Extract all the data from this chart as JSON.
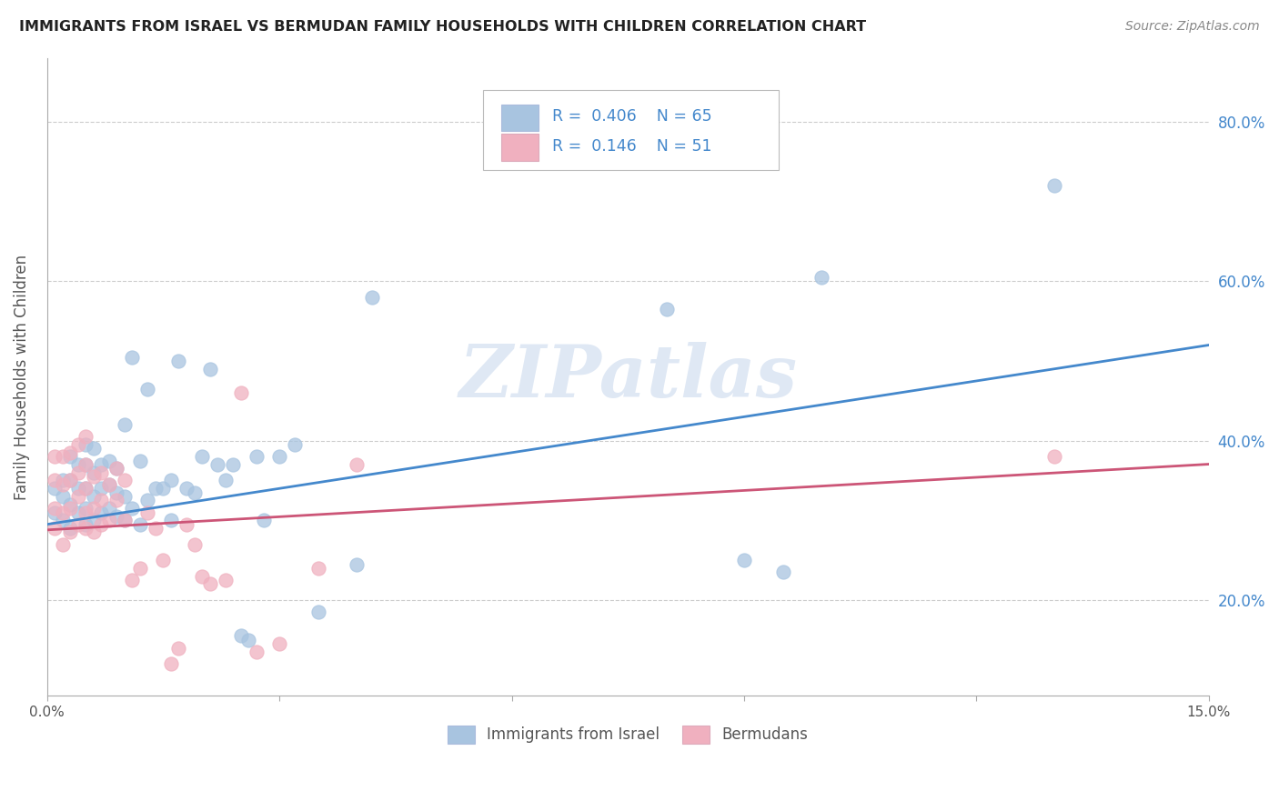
{
  "title": "IMMIGRANTS FROM ISRAEL VS BERMUDAN FAMILY HOUSEHOLDS WITH CHILDREN CORRELATION CHART",
  "source": "Source: ZipAtlas.com",
  "ylabel": "Family Households with Children",
  "xlim": [
    0.0,
    0.15
  ],
  "ylim": [
    0.08,
    0.88
  ],
  "xtick_positions": [
    0.0,
    0.03,
    0.06,
    0.09,
    0.12,
    0.15
  ],
  "xticklabels": [
    "0.0%",
    "",
    "",
    "",
    "",
    "15.0%"
  ],
  "ytick_positions": [
    0.2,
    0.4,
    0.6,
    0.8
  ],
  "yticklabels": [
    "20.0%",
    "40.0%",
    "60.0%",
    "80.0%"
  ],
  "blue_color": "#a8c4e0",
  "pink_color": "#f0b0bf",
  "trend_blue": "#4488cc",
  "trend_pink": "#cc5577",
  "label_blue_color": "#4488cc",
  "R_blue": 0.406,
  "N_blue": 65,
  "R_pink": 0.146,
  "N_pink": 51,
  "legend_label_blue": "Immigrants from Israel",
  "legend_label_pink": "Bermudans",
  "watermark": "ZIPatlas",
  "blue_scatter_x": [
    0.001,
    0.001,
    0.002,
    0.002,
    0.002,
    0.003,
    0.003,
    0.003,
    0.003,
    0.004,
    0.004,
    0.004,
    0.005,
    0.005,
    0.005,
    0.005,
    0.005,
    0.006,
    0.006,
    0.006,
    0.006,
    0.007,
    0.007,
    0.007,
    0.008,
    0.008,
    0.008,
    0.009,
    0.009,
    0.009,
    0.01,
    0.01,
    0.01,
    0.011,
    0.011,
    0.012,
    0.012,
    0.013,
    0.013,
    0.014,
    0.015,
    0.016,
    0.016,
    0.017,
    0.018,
    0.019,
    0.02,
    0.021,
    0.022,
    0.023,
    0.024,
    0.025,
    0.026,
    0.027,
    0.028,
    0.03,
    0.032,
    0.035,
    0.04,
    0.042,
    0.08,
    0.09,
    0.095,
    0.1,
    0.13
  ],
  "blue_scatter_y": [
    0.31,
    0.34,
    0.3,
    0.33,
    0.35,
    0.29,
    0.32,
    0.35,
    0.38,
    0.31,
    0.34,
    0.37,
    0.295,
    0.315,
    0.34,
    0.37,
    0.395,
    0.3,
    0.33,
    0.36,
    0.39,
    0.31,
    0.34,
    0.37,
    0.315,
    0.345,
    0.375,
    0.305,
    0.335,
    0.365,
    0.3,
    0.33,
    0.42,
    0.315,
    0.505,
    0.295,
    0.375,
    0.325,
    0.465,
    0.34,
    0.34,
    0.35,
    0.3,
    0.5,
    0.34,
    0.335,
    0.38,
    0.49,
    0.37,
    0.35,
    0.37,
    0.155,
    0.15,
    0.38,
    0.3,
    0.38,
    0.395,
    0.185,
    0.245,
    0.58,
    0.565,
    0.25,
    0.235,
    0.605,
    0.72
  ],
  "pink_scatter_x": [
    0.001,
    0.001,
    0.001,
    0.001,
    0.002,
    0.002,
    0.002,
    0.002,
    0.003,
    0.003,
    0.003,
    0.003,
    0.004,
    0.004,
    0.004,
    0.004,
    0.005,
    0.005,
    0.005,
    0.005,
    0.005,
    0.006,
    0.006,
    0.006,
    0.007,
    0.007,
    0.007,
    0.008,
    0.008,
    0.009,
    0.009,
    0.01,
    0.01,
    0.011,
    0.012,
    0.013,
    0.014,
    0.015,
    0.016,
    0.017,
    0.018,
    0.019,
    0.02,
    0.021,
    0.023,
    0.025,
    0.027,
    0.03,
    0.035,
    0.04,
    0.13
  ],
  "pink_scatter_y": [
    0.29,
    0.315,
    0.35,
    0.38,
    0.27,
    0.31,
    0.345,
    0.38,
    0.285,
    0.315,
    0.35,
    0.385,
    0.295,
    0.33,
    0.36,
    0.395,
    0.29,
    0.31,
    0.34,
    0.37,
    0.405,
    0.285,
    0.315,
    0.355,
    0.295,
    0.325,
    0.36,
    0.3,
    0.345,
    0.325,
    0.365,
    0.3,
    0.35,
    0.225,
    0.24,
    0.31,
    0.29,
    0.25,
    0.12,
    0.14,
    0.295,
    0.27,
    0.23,
    0.22,
    0.225,
    0.46,
    0.135,
    0.145,
    0.24,
    0.37,
    0.38
  ]
}
